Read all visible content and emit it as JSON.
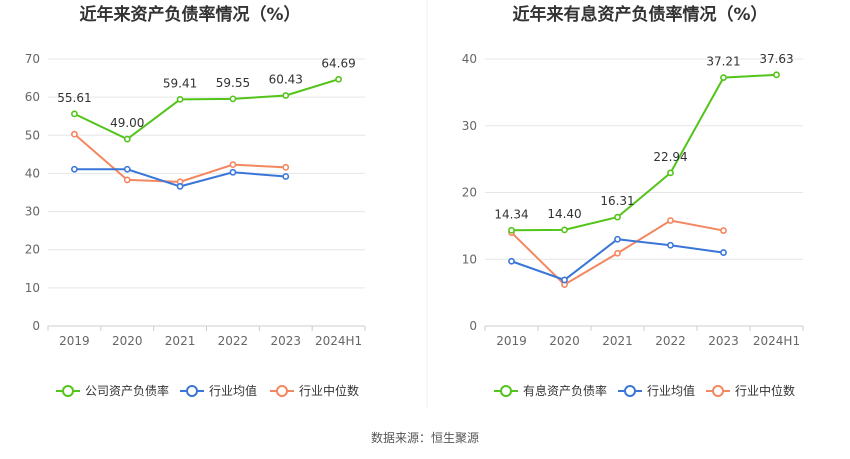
{
  "chart_data": [
    {
      "type": "line",
      "title": "近年来资产负债率情况（%）",
      "categories": [
        "2019",
        "2020",
        "2021",
        "2022",
        "2023",
        "2024H1"
      ],
      "ylim": [
        0,
        70
      ],
      "yticks": [
        0,
        10,
        20,
        30,
        40,
        50,
        60,
        70
      ],
      "grid": true,
      "legend": "bottom",
      "series": [
        {
          "name": "公司资产负债率",
          "color": "#52c41a",
          "values": [
            55.61,
            49.0,
            59.41,
            59.55,
            60.43,
            64.69
          ],
          "labels": [
            "55.61",
            "49.00",
            "59.41",
            "59.55",
            "60.43",
            "64.69"
          ]
        },
        {
          "name": "行业均值",
          "color": "#3a76d8",
          "values": [
            41.1,
            41.1,
            36.6,
            40.3,
            39.2,
            null
          ]
        },
        {
          "name": "行业中位数",
          "color": "#f4875f",
          "values": [
            50.3,
            38.3,
            37.8,
            42.3,
            41.6,
            null
          ]
        }
      ]
    },
    {
      "type": "line",
      "title": "近年来有息资产负债率情况（%）",
      "categories": [
        "2019",
        "2020",
        "2021",
        "2022",
        "2023",
        "2024H1"
      ],
      "ylim": [
        0,
        40
      ],
      "yticks": [
        0,
        10,
        20,
        30,
        40
      ],
      "grid": true,
      "legend": "bottom",
      "series": [
        {
          "name": "有息资产负债率",
          "color": "#52c41a",
          "values": [
            14.34,
            14.4,
            16.31,
            22.94,
            37.21,
            37.63
          ],
          "labels": [
            "14.34",
            "14.40",
            "16.31",
            "22.94",
            "37.21",
            "37.63"
          ]
        },
        {
          "name": "行业均值",
          "color": "#3a76d8",
          "values": [
            9.7,
            6.9,
            13.0,
            12.1,
            11.0,
            null
          ]
        },
        {
          "name": "行业中位数",
          "color": "#f4875f",
          "values": [
            14.0,
            6.2,
            10.9,
            15.8,
            14.3,
            null
          ]
        }
      ]
    }
  ],
  "footer": {
    "source": "数据来源：恒生聚源"
  }
}
